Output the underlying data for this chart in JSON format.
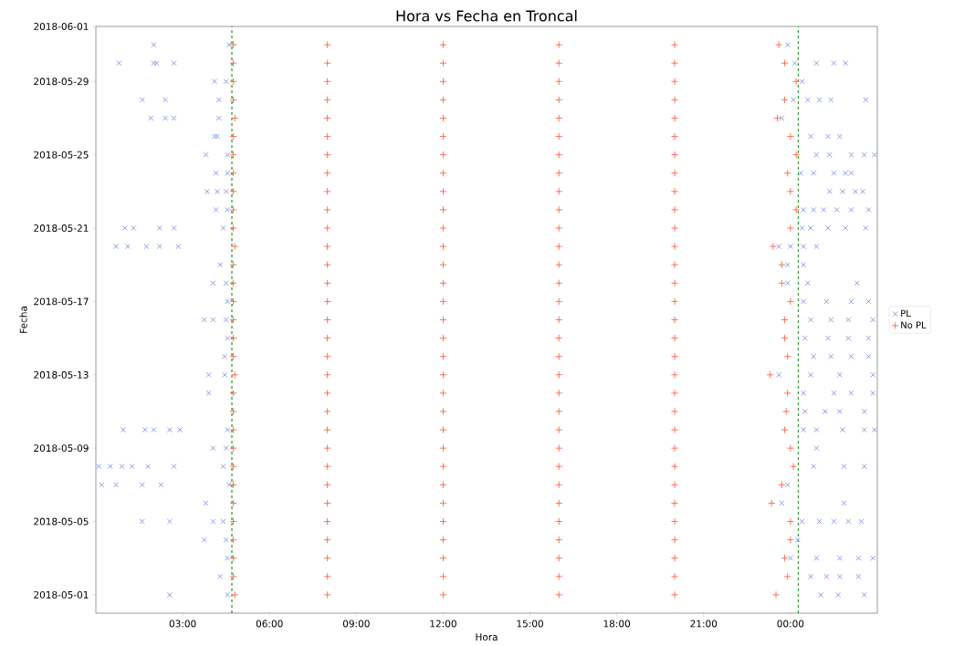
{
  "chart_data": {
    "type": "scatter",
    "orientation": "horizontal",
    "title": "Hora vs Fecha en Troncal",
    "xlabel": "Hora",
    "ylabel": "Fecha",
    "xlim": [
      0,
      27
    ],
    "ylim": [
      "2018-04-30",
      "2018-06-01"
    ],
    "xticks": [
      {
        "value": 3,
        "label": "03:00"
      },
      {
        "value": 6,
        "label": "06:00"
      },
      {
        "value": 9,
        "label": "09:00"
      },
      {
        "value": 12,
        "label": "12:00"
      },
      {
        "value": 15,
        "label": "15:00"
      },
      {
        "value": 18,
        "label": "18:00"
      },
      {
        "value": 21,
        "label": "21:00"
      },
      {
        "value": 24,
        "label": "00:00"
      }
    ],
    "yticks": [
      "2018-05-01",
      "2018-05-05",
      "2018-05-09",
      "2018-05-13",
      "2018-05-17",
      "2018-05-21",
      "2018-05-25",
      "2018-05-29",
      "2018-06-01"
    ],
    "legend": "right",
    "ref_lines": [
      {
        "axis": "x",
        "value": 4.7,
        "color": "#2ca02c",
        "line_style": "dashed"
      },
      {
        "axis": "x",
        "value": 24.27,
        "color": "#2ca02c",
        "line_style": "dashed"
      }
    ],
    "series": [
      {
        "name": "PL",
        "color": "#7b93e6",
        "marker": "cross",
        "values": [
          2.0,
          4.6,
          23.9,
          0.8,
          2.0,
          2.1,
          2.7,
          24.15,
          24.9,
          25.5,
          25.9,
          4.1,
          4.5,
          24.4,
          1.6,
          2.4,
          4.25,
          24.1,
          24.6,
          25.0,
          25.4,
          26.6,
          1.9,
          2.4,
          2.7,
          4.25,
          23.7,
          4.1,
          4.2,
          24.7,
          25.3,
          25.7,
          3.8,
          4.55,
          24.9,
          25.35,
          26.1,
          26.55,
          26.9,
          4.15,
          4.55,
          24.35,
          24.8,
          25.5,
          25.9,
          26.1,
          3.85,
          4.2,
          4.5,
          25.35,
          25.8,
          26.25,
          26.5,
          4.15,
          4.55,
          24.45,
          24.8,
          25.15,
          25.6,
          26.1,
          26.7,
          1.0,
          1.3,
          2.2,
          2.7,
          4.4,
          24.4,
          24.7,
          25.3,
          25.9,
          26.6,
          0.7,
          1.1,
          1.75,
          2.2,
          2.85,
          23.6,
          24.0,
          24.45,
          24.9,
          4.3,
          23.9,
          24.45,
          4.05,
          4.5,
          23.9,
          24.6,
          26.3,
          4.55,
          24.45,
          25.25,
          26.1,
          26.7,
          3.75,
          4.05,
          4.5,
          24.7,
          25.4,
          26.0,
          26.85,
          4.55,
          24.5,
          25.3,
          26.0,
          26.7,
          4.45,
          24.8,
          25.4,
          26.1,
          26.7,
          3.9,
          4.45,
          23.6,
          24.7,
          25.7,
          26.85,
          3.9,
          24.45,
          25.5,
          26.1,
          26.85,
          24.5,
          25.2,
          25.7,
          26.55,
          0.95,
          1.7,
          2.0,
          2.55,
          2.9,
          4.55,
          24.45,
          24.9,
          25.8,
          26.55,
          26.9,
          4.05,
          4.5,
          24.9,
          0.1,
          0.5,
          0.9,
          1.25,
          1.8,
          2.7,
          4.4,
          24.8,
          25.85,
          26.55,
          0.2,
          0.7,
          1.6,
          2.25,
          4.6,
          23.9,
          3.8,
          23.7,
          25.85,
          1.6,
          2.55,
          4.05,
          4.4,
          24.4,
          25.0,
          25.5,
          26.0,
          26.45,
          3.75,
          4.5,
          24.25,
          4.55,
          24.0,
          24.9,
          25.7,
          26.35,
          26.85,
          4.3,
          24.7,
          25.25,
          25.7,
          26.35,
          2.55,
          4.55,
          25.05,
          25.65,
          26.55
        ],
        "x": [
          "2018-05-31",
          "2018-05-31",
          "2018-05-31",
          "2018-05-30",
          "2018-05-30",
          "2018-05-30",
          "2018-05-30",
          "2018-05-30",
          "2018-05-30",
          "2018-05-30",
          "2018-05-30",
          "2018-05-29",
          "2018-05-29",
          "2018-05-29",
          "2018-05-28",
          "2018-05-28",
          "2018-05-28",
          "2018-05-28",
          "2018-05-28",
          "2018-05-28",
          "2018-05-28",
          "2018-05-28",
          "2018-05-27",
          "2018-05-27",
          "2018-05-27",
          "2018-05-27",
          "2018-05-27",
          "2018-05-26",
          "2018-05-26",
          "2018-05-26",
          "2018-05-26",
          "2018-05-26",
          "2018-05-25",
          "2018-05-25",
          "2018-05-25",
          "2018-05-25",
          "2018-05-25",
          "2018-05-25",
          "2018-05-25",
          "2018-05-24",
          "2018-05-24",
          "2018-05-24",
          "2018-05-24",
          "2018-05-24",
          "2018-05-24",
          "2018-05-24",
          "2018-05-23",
          "2018-05-23",
          "2018-05-23",
          "2018-05-23",
          "2018-05-23",
          "2018-05-23",
          "2018-05-23",
          "2018-05-22",
          "2018-05-22",
          "2018-05-22",
          "2018-05-22",
          "2018-05-22",
          "2018-05-22",
          "2018-05-22",
          "2018-05-22",
          "2018-05-21",
          "2018-05-21",
          "2018-05-21",
          "2018-05-21",
          "2018-05-21",
          "2018-05-21",
          "2018-05-21",
          "2018-05-21",
          "2018-05-21",
          "2018-05-21",
          "2018-05-20",
          "2018-05-20",
          "2018-05-20",
          "2018-05-20",
          "2018-05-20",
          "2018-05-20",
          "2018-05-20",
          "2018-05-20",
          "2018-05-20",
          "2018-05-19",
          "2018-05-19",
          "2018-05-19",
          "2018-05-18",
          "2018-05-18",
          "2018-05-18",
          "2018-05-18",
          "2018-05-18",
          "2018-05-17",
          "2018-05-17",
          "2018-05-17",
          "2018-05-17",
          "2018-05-17",
          "2018-05-16",
          "2018-05-16",
          "2018-05-16",
          "2018-05-16",
          "2018-05-16",
          "2018-05-16",
          "2018-05-16",
          "2018-05-15",
          "2018-05-15",
          "2018-05-15",
          "2018-05-15",
          "2018-05-15",
          "2018-05-14",
          "2018-05-14",
          "2018-05-14",
          "2018-05-14",
          "2018-05-14",
          "2018-05-13",
          "2018-05-13",
          "2018-05-13",
          "2018-05-13",
          "2018-05-13",
          "2018-05-13",
          "2018-05-12",
          "2018-05-12",
          "2018-05-12",
          "2018-05-12",
          "2018-05-12",
          "2018-05-11",
          "2018-05-11",
          "2018-05-11",
          "2018-05-11",
          "2018-05-10",
          "2018-05-10",
          "2018-05-10",
          "2018-05-10",
          "2018-05-10",
          "2018-05-10",
          "2018-05-10",
          "2018-05-10",
          "2018-05-10",
          "2018-05-10",
          "2018-05-10",
          "2018-05-09",
          "2018-05-09",
          "2018-05-09",
          "2018-05-08",
          "2018-05-08",
          "2018-05-08",
          "2018-05-08",
          "2018-05-08",
          "2018-05-08",
          "2018-05-08",
          "2018-05-08",
          "2018-05-08",
          "2018-05-08",
          "2018-05-07",
          "2018-05-07",
          "2018-05-07",
          "2018-05-07",
          "2018-05-07",
          "2018-05-07",
          "2018-05-06",
          "2018-05-06",
          "2018-05-06",
          "2018-05-05",
          "2018-05-05",
          "2018-05-05",
          "2018-05-05",
          "2018-05-05",
          "2018-05-05",
          "2018-05-05",
          "2018-05-05",
          "2018-05-05",
          "2018-05-04",
          "2018-05-04",
          "2018-05-04",
          "2018-05-03",
          "2018-05-03",
          "2018-05-03",
          "2018-05-03",
          "2018-05-03",
          "2018-05-03",
          "2018-05-02",
          "2018-05-02",
          "2018-05-02",
          "2018-05-02",
          "2018-05-02",
          "2018-05-01",
          "2018-05-01",
          "2018-05-01",
          "2018-05-01",
          "2018-05-01"
        ]
      },
      {
        "name": "No PL",
        "color": "#ff6347",
        "marker": "plus",
        "values": [
          4.8,
          8,
          12,
          16,
          20,
          23.5,
          4.75,
          8,
          12,
          16,
          20,
          23.9,
          4.75,
          8,
          12,
          16,
          20,
          23.8,
          4.75,
          8,
          12,
          16,
          20,
          24.0,
          4.75,
          8,
          12,
          16,
          20,
          24.0,
          4.75,
          8,
          12,
          16,
          20,
          23.35,
          4.75,
          8,
          12,
          16,
          20,
          23.7,
          4.75,
          8,
          12,
          16,
          20,
          24.1,
          4.75,
          8,
          12,
          16,
          20,
          24.0,
          4.75,
          8,
          12,
          16,
          20,
          23.8,
          4.75,
          8,
          12,
          16,
          20,
          23.85,
          4.75,
          8,
          12,
          16,
          20,
          23.9,
          4.8,
          8,
          12,
          16,
          20,
          23.3,
          4.75,
          8,
          12,
          16,
          20,
          23.9,
          4.75,
          8,
          12,
          16,
          20,
          23.8,
          4.75,
          8,
          12,
          16,
          20,
          23.8,
          4.75,
          8,
          12,
          16,
          20,
          24.0,
          4.75,
          8,
          12,
          16,
          20,
          23.7,
          4.75,
          8,
          12,
          16,
          20,
          23.7,
          4.8,
          8,
          12,
          16,
          20,
          23.4,
          4.75,
          8,
          12,
          16,
          20,
          24.0,
          4.75,
          8,
          12,
          16,
          20,
          24.2,
          4.75,
          8,
          12,
          16,
          20,
          24.0,
          4.75,
          8,
          12,
          16,
          20,
          23.9,
          4.75,
          8,
          12,
          16,
          20,
          24.2,
          4.75,
          8,
          12,
          16,
          20,
          24.0,
          4.8,
          8,
          12,
          16,
          20,
          23.55,
          4.75,
          8,
          12,
          16,
          20,
          23.8,
          4.75,
          8,
          12,
          16,
          20,
          24.2,
          4.75,
          8,
          12,
          16,
          20,
          23.8,
          4.75,
          8,
          12,
          16,
          20,
          23.6
        ],
        "x": [
          "2018-05-01",
          "2018-05-01",
          "2018-05-01",
          "2018-05-01",
          "2018-05-01",
          "2018-05-01",
          "2018-05-02",
          "2018-05-02",
          "2018-05-02",
          "2018-05-02",
          "2018-05-02",
          "2018-05-02",
          "2018-05-03",
          "2018-05-03",
          "2018-05-03",
          "2018-05-03",
          "2018-05-03",
          "2018-05-03",
          "2018-05-04",
          "2018-05-04",
          "2018-05-04",
          "2018-05-04",
          "2018-05-04",
          "2018-05-04",
          "2018-05-05",
          "2018-05-05",
          "2018-05-05",
          "2018-05-05",
          "2018-05-05",
          "2018-05-05",
          "2018-05-06",
          "2018-05-06",
          "2018-05-06",
          "2018-05-06",
          "2018-05-06",
          "2018-05-06",
          "2018-05-07",
          "2018-05-07",
          "2018-05-07",
          "2018-05-07",
          "2018-05-07",
          "2018-05-07",
          "2018-05-08",
          "2018-05-08",
          "2018-05-08",
          "2018-05-08",
          "2018-05-08",
          "2018-05-08",
          "2018-05-09",
          "2018-05-09",
          "2018-05-09",
          "2018-05-09",
          "2018-05-09",
          "2018-05-09",
          "2018-05-10",
          "2018-05-10",
          "2018-05-10",
          "2018-05-10",
          "2018-05-10",
          "2018-05-10",
          "2018-05-11",
          "2018-05-11",
          "2018-05-11",
          "2018-05-11",
          "2018-05-11",
          "2018-05-11",
          "2018-05-12",
          "2018-05-12",
          "2018-05-12",
          "2018-05-12",
          "2018-05-12",
          "2018-05-12",
          "2018-05-13",
          "2018-05-13",
          "2018-05-13",
          "2018-05-13",
          "2018-05-13",
          "2018-05-13",
          "2018-05-14",
          "2018-05-14",
          "2018-05-14",
          "2018-05-14",
          "2018-05-14",
          "2018-05-14",
          "2018-05-15",
          "2018-05-15",
          "2018-05-15",
          "2018-05-15",
          "2018-05-15",
          "2018-05-15",
          "2018-05-16",
          "2018-05-16",
          "2018-05-16",
          "2018-05-16",
          "2018-05-16",
          "2018-05-16",
          "2018-05-17",
          "2018-05-17",
          "2018-05-17",
          "2018-05-17",
          "2018-05-17",
          "2018-05-17",
          "2018-05-18",
          "2018-05-18",
          "2018-05-18",
          "2018-05-18",
          "2018-05-18",
          "2018-05-18",
          "2018-05-19",
          "2018-05-19",
          "2018-05-19",
          "2018-05-19",
          "2018-05-19",
          "2018-05-19",
          "2018-05-20",
          "2018-05-20",
          "2018-05-20",
          "2018-05-20",
          "2018-05-20",
          "2018-05-20",
          "2018-05-21",
          "2018-05-21",
          "2018-05-21",
          "2018-05-21",
          "2018-05-21",
          "2018-05-21",
          "2018-05-22",
          "2018-05-22",
          "2018-05-22",
          "2018-05-22",
          "2018-05-22",
          "2018-05-22",
          "2018-05-23",
          "2018-05-23",
          "2018-05-23",
          "2018-05-23",
          "2018-05-23",
          "2018-05-23",
          "2018-05-24",
          "2018-05-24",
          "2018-05-24",
          "2018-05-24",
          "2018-05-24",
          "2018-05-24",
          "2018-05-25",
          "2018-05-25",
          "2018-05-25",
          "2018-05-25",
          "2018-05-25",
          "2018-05-25",
          "2018-05-26",
          "2018-05-26",
          "2018-05-26",
          "2018-05-26",
          "2018-05-26",
          "2018-05-26",
          "2018-05-27",
          "2018-05-27",
          "2018-05-27",
          "2018-05-27",
          "2018-05-27",
          "2018-05-27",
          "2018-05-28",
          "2018-05-28",
          "2018-05-28",
          "2018-05-28",
          "2018-05-28",
          "2018-05-28",
          "2018-05-29",
          "2018-05-29",
          "2018-05-29",
          "2018-05-29",
          "2018-05-29",
          "2018-05-29",
          "2018-05-30",
          "2018-05-30",
          "2018-05-30",
          "2018-05-30",
          "2018-05-30",
          "2018-05-30",
          "2018-05-31",
          "2018-05-31",
          "2018-05-31",
          "2018-05-31",
          "2018-05-31",
          "2018-05-31"
        ]
      }
    ]
  }
}
